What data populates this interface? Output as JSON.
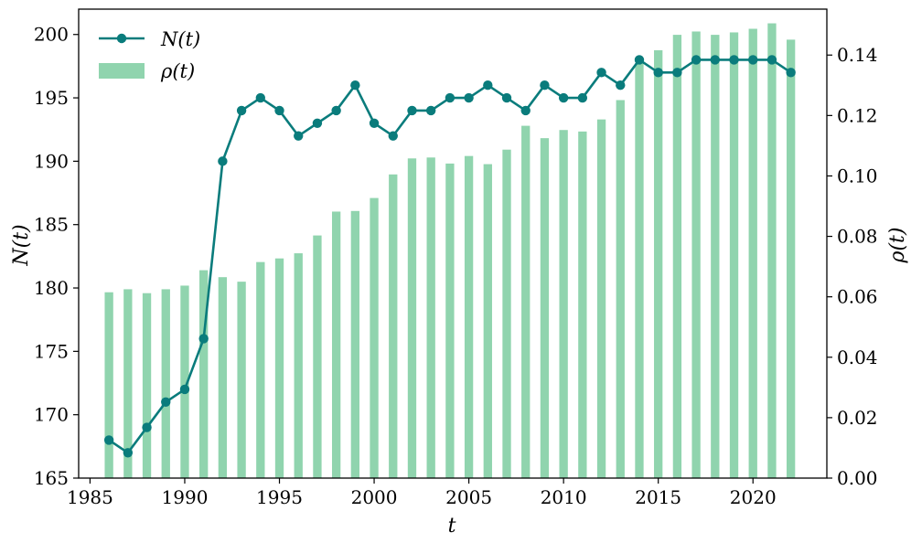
{
  "chart_data": {
    "type": "bar+line",
    "xlabel": "t",
    "ylabel_left": "N(t)",
    "ylabel_right": "ρ(t)",
    "xlim": [
      1984.4,
      2023.9
    ],
    "ylim_left": [
      165,
      202
    ],
    "ylim_right": [
      0.0,
      0.1552
    ],
    "xticks": [
      "1985",
      "1990",
      "1995",
      "2000",
      "2005",
      "2010",
      "2015",
      "2020"
    ],
    "yticks_left": [
      "165",
      "170",
      "175",
      "180",
      "185",
      "190",
      "195",
      "200"
    ],
    "yticks_right": [
      "0.00",
      "0.02",
      "0.04",
      "0.06",
      "0.08",
      "0.10",
      "0.12",
      "0.14"
    ],
    "legend": {
      "position": "top-left",
      "line_label": "N(t)",
      "bar_label": "ρ(t)"
    },
    "colors": {
      "line": "#0a7c7c",
      "bar": "#90d4ae"
    },
    "grid": false,
    "x": [
      1986,
      1987,
      1988,
      1989,
      1990,
      1991,
      1992,
      1993,
      1994,
      1995,
      1996,
      1997,
      1998,
      1999,
      2000,
      2001,
      2002,
      2003,
      2004,
      2005,
      2006,
      2007,
      2008,
      2009,
      2010,
      2011,
      2012,
      2013,
      2014,
      2015,
      2016,
      2017,
      2018,
      2019,
      2020,
      2021,
      2022
    ],
    "series": [
      {
        "name": "N(t)",
        "kind": "line",
        "axis": "left",
        "values": [
          168,
          167,
          169,
          171,
          172,
          176,
          190,
          194,
          195,
          194,
          192,
          193,
          194,
          196,
          193,
          192,
          194,
          194,
          195,
          195,
          196,
          195,
          194,
          196,
          195,
          195,
          197,
          196,
          198,
          197,
          197,
          198,
          198,
          198,
          198,
          198,
          197
        ]
      },
      {
        "name": "ρ(t)",
        "kind": "bar",
        "axis": "right",
        "values": [
          0.0615,
          0.0625,
          0.0612,
          0.0625,
          0.0637,
          0.0688,
          0.0665,
          0.065,
          0.0715,
          0.0727,
          0.0744,
          0.0803,
          0.0882,
          0.0884,
          0.0927,
          0.1005,
          0.1058,
          0.1061,
          0.1041,
          0.1066,
          0.1039,
          0.1087,
          0.1166,
          0.1125,
          0.1152,
          0.1147,
          0.1187,
          0.1251,
          0.1374,
          0.1416,
          0.1467,
          0.1478,
          0.1467,
          0.1475,
          0.1487,
          0.1505,
          0.1451
        ]
      }
    ]
  }
}
